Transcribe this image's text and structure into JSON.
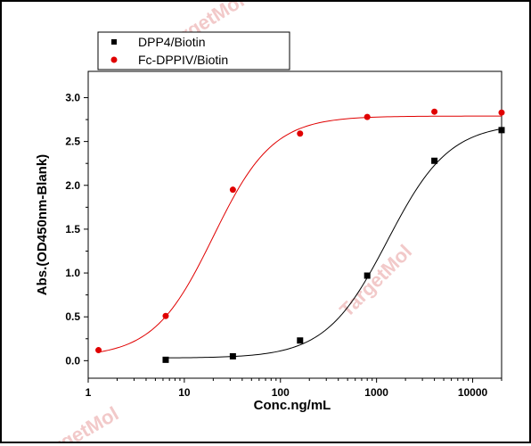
{
  "watermark": "TargetMol",
  "chart_data": {
    "type": "scatter",
    "xscale": "log",
    "xlim": [
      1,
      20000
    ],
    "ylim": [
      -0.2,
      3.3
    ],
    "xlabel": "Conc.ng/mL",
    "ylabel": "Abs.(OD450nm-Blank)",
    "x_ticks": [
      1,
      10,
      100,
      1000,
      10000
    ],
    "y_ticks": [
      0.0,
      0.5,
      1.0,
      1.5,
      2.0,
      2.5,
      3.0
    ],
    "x_tick_labels": [
      "1",
      "10",
      "100",
      "1000",
      "10000"
    ],
    "y_tick_labels": [
      "0.0",
      "0.5",
      "1.0",
      "1.5",
      "2.0",
      "2.5",
      "3.0"
    ],
    "legend_position": "top-left",
    "series": [
      {
        "name": "DPP4/Biotin",
        "marker": "square",
        "color": "#000000",
        "x": [
          6.4,
          32,
          160,
          800,
          4000,
          20000
        ],
        "y": [
          0.01,
          0.05,
          0.23,
          0.97,
          2.28,
          2.63
        ],
        "fit": {
          "bottom": 0.03,
          "top": 2.71,
          "ec50": 1300,
          "hill": 1.35
        }
      },
      {
        "name": "Fc-DPPIV/Biotin",
        "marker": "circle",
        "color": "#e00000",
        "x": [
          1.28,
          6.4,
          32,
          160,
          800,
          4000,
          20000
        ],
        "y": [
          0.12,
          0.51,
          1.95,
          2.59,
          2.78,
          2.84,
          2.83
        ],
        "fit": {
          "bottom": 0.04,
          "top": 2.79,
          "ec50": 20,
          "hill": 1.4
        }
      }
    ]
  }
}
